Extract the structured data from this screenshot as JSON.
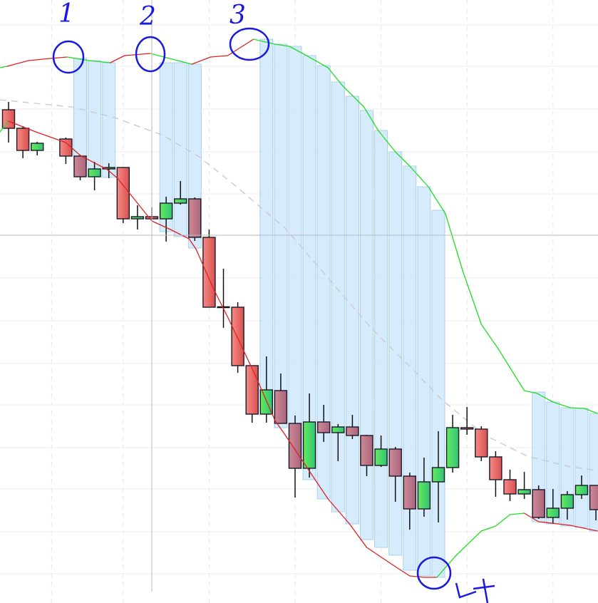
{
  "chart_data": {
    "type": "candlestick",
    "title": "",
    "xlabel": "",
    "ylabel": "",
    "ylim": [
      0,
      846
    ],
    "xlim": [
      -0.6,
      41.1
    ],
    "grid": {
      "horizontal": true,
      "vertical_dashed": true
    },
    "grid_h_levels": [
      811,
      753,
      693,
      633,
      574,
      456,
      396,
      336,
      278,
      218,
      160,
      100,
      41
    ],
    "grid_v_slots": [
      3,
      8,
      14,
      20,
      26,
      32,
      38
    ],
    "crosshair": {
      "slot": 10,
      "price": 516
    },
    "colors": {
      "red": "#e8605f",
      "mauve": "#b97384",
      "green": "#3ecf6a",
      "doji": "#111111",
      "highlight": "#cfe7fb",
      "band_up": "#22dd22",
      "band_down": "#dd2222",
      "dashed": "#c8c8c8",
      "annotation": "#1a1adf"
    },
    "candles": [
      {
        "t": 0,
        "o": 692,
        "h": 703,
        "l": 646,
        "c": 666,
        "color": "red"
      },
      {
        "t": 1,
        "o": 666,
        "h": 669,
        "l": 624,
        "c": 635,
        "color": "red"
      },
      {
        "t": 2,
        "o": 635,
        "h": 647,
        "l": 628,
        "c": 645,
        "color": "green"
      },
      {
        "t": 4,
        "o": 651,
        "h": 653,
        "l": 616,
        "c": 627,
        "color": "red"
      },
      {
        "t": 5,
        "o": 627,
        "h": 629,
        "l": 593,
        "c": 598,
        "color": "mauve"
      },
      {
        "t": 6,
        "o": 598,
        "h": 619,
        "l": 579,
        "c": 609,
        "color": "green"
      },
      {
        "t": 7,
        "o": 609,
        "h": 617,
        "l": 596,
        "c": 611,
        "color": "green"
      },
      {
        "t": 8,
        "o": 611,
        "h": 611,
        "l": 533,
        "c": 539,
        "color": "red"
      },
      {
        "t": 9,
        "o": 539,
        "h": 558,
        "l": 524,
        "c": 542,
        "color": "green"
      },
      {
        "t": 10,
        "o": 542,
        "h": 555,
        "l": 539,
        "c": 539,
        "color": "red"
      },
      {
        "t": 11,
        "o": 539,
        "h": 570,
        "l": 507,
        "c": 561,
        "color": "green"
      },
      {
        "t": 12,
        "o": 561,
        "h": 592,
        "l": 559,
        "c": 567,
        "color": "green"
      },
      {
        "t": 13,
        "o": 567,
        "h": 569,
        "l": 508,
        "c": 513,
        "color": "mauve"
      },
      {
        "t": 14,
        "o": 513,
        "h": 524,
        "l": 415,
        "c": 415,
        "color": "red"
      },
      {
        "t": 15,
        "o": 415,
        "h": 469,
        "l": 386,
        "c": 415,
        "color": "doji"
      },
      {
        "t": 16,
        "o": 415,
        "h": 422,
        "l": 323,
        "c": 333,
        "color": "red"
      },
      {
        "t": 17,
        "o": 333,
        "h": 333,
        "l": 253,
        "c": 265,
        "color": "red"
      },
      {
        "t": 18,
        "o": 265,
        "h": 346,
        "l": 253,
        "c": 299,
        "color": "green"
      },
      {
        "t": 19,
        "o": 298,
        "h": 322,
        "l": 252,
        "c": 252,
        "color": "mauve"
      },
      {
        "t": 20,
        "o": 252,
        "h": 263,
        "l": 148,
        "c": 189,
        "color": "mauve"
      },
      {
        "t": 21,
        "o": 189,
        "h": 294,
        "l": 176,
        "c": 254,
        "color": "green"
      },
      {
        "t": 22,
        "o": 254,
        "h": 278,
        "l": 226,
        "c": 239,
        "color": "mauve"
      },
      {
        "t": 23,
        "o": 239,
        "h": 251,
        "l": 199,
        "c": 247,
        "color": "green"
      },
      {
        "t": 24,
        "o": 247,
        "h": 264,
        "l": 230,
        "c": 235,
        "color": "mauve"
      },
      {
        "t": 25,
        "o": 235,
        "h": 236,
        "l": 178,
        "c": 193,
        "color": "mauve"
      },
      {
        "t": 26,
        "o": 193,
        "h": 235,
        "l": 191,
        "c": 216,
        "color": "green"
      },
      {
        "t": 27,
        "o": 216,
        "h": 219,
        "l": 142,
        "c": 178,
        "color": "mauve"
      },
      {
        "t": 28,
        "o": 178,
        "h": 183,
        "l": 103,
        "c": 132,
        "color": "mauve"
      },
      {
        "t": 29,
        "o": 132,
        "h": 204,
        "l": 121,
        "c": 170,
        "color": "green"
      },
      {
        "t": 30,
        "o": 170,
        "h": 241,
        "l": 113,
        "c": 190,
        "color": "green"
      },
      {
        "t": 31,
        "o": 190,
        "h": 264,
        "l": 183,
        "c": 246,
        "color": "green"
      },
      {
        "t": 32,
        "o": 246,
        "h": 275,
        "l": 236,
        "c": 244,
        "color": "red"
      },
      {
        "t": 33,
        "o": 244,
        "h": 248,
        "l": 199,
        "c": 205,
        "color": "red"
      },
      {
        "t": 34,
        "o": 205,
        "h": 213,
        "l": 149,
        "c": 173,
        "color": "red"
      },
      {
        "t": 35,
        "o": 173,
        "h": 187,
        "l": 143,
        "c": 153,
        "color": "red"
      },
      {
        "t": 36,
        "o": 153,
        "h": 184,
        "l": 146,
        "c": 159,
        "color": "green"
      },
      {
        "t": 37,
        "o": 159,
        "h": 165,
        "l": 118,
        "c": 120,
        "color": "mauve"
      },
      {
        "t": 38,
        "o": 120,
        "h": 160,
        "l": 111,
        "c": 133,
        "color": "green"
      },
      {
        "t": 39,
        "o": 133,
        "h": 157,
        "l": 117,
        "c": 152,
        "color": "green"
      },
      {
        "t": 40,
        "o": 152,
        "h": 179,
        "l": 146,
        "c": 165,
        "color": "green"
      },
      {
        "t": 41,
        "o": 165,
        "h": 165,
        "l": 116,
        "c": 131,
        "color": "mauve"
      }
    ],
    "highlights": [
      [
        5,
        764,
        616
      ],
      [
        6,
        761,
        598
      ],
      [
        7,
        758,
        597
      ],
      [
        11,
        758,
        521
      ],
      [
        12,
        758,
        514
      ],
      [
        13,
        756,
        498
      ],
      [
        18,
        791,
        288
      ],
      [
        19,
        784,
        246
      ],
      [
        20,
        781,
        189
      ],
      [
        21,
        768,
        173
      ],
      [
        22,
        754,
        146
      ],
      [
        23,
        731,
        128
      ],
      [
        24,
        711,
        111
      ],
      [
        25,
        691,
        89
      ],
      [
        26,
        663,
        78
      ],
      [
        27,
        633,
        67
      ],
      [
        28,
        613,
        46
      ],
      [
        29,
        584,
        38
      ],
      [
        30,
        551,
        36
      ],
      [
        37,
        296,
        114
      ],
      [
        38,
        282,
        111
      ],
      [
        39,
        274,
        108
      ],
      [
        40,
        273,
        106
      ],
      [
        41,
        266,
        101
      ]
    ],
    "upper_band": [
      [
        -0.6,
        751,
        "up"
      ],
      [
        -0.1,
        753,
        "down"
      ],
      [
        1.4,
        761,
        "down"
      ],
      [
        2.9,
        764,
        "down"
      ],
      [
        4.1,
        766,
        "up"
      ],
      [
        5.6,
        761,
        "up"
      ],
      [
        7.1,
        758,
        "down"
      ],
      [
        8.1,
        768,
        "down"
      ],
      [
        9.9,
        771,
        "up"
      ],
      [
        11.8,
        761,
        "up"
      ],
      [
        12.8,
        756,
        "down"
      ],
      [
        14.1,
        766,
        "down"
      ],
      [
        15.3,
        768,
        "down"
      ],
      [
        17.1,
        791,
        "up"
      ],
      [
        18.6,
        784,
        "up"
      ],
      [
        19.6,
        781,
        "up"
      ],
      [
        20.8,
        768,
        "up"
      ],
      [
        22.3,
        751,
        "up"
      ],
      [
        23.3,
        726,
        "up"
      ],
      [
        24.8,
        696,
        "up"
      ],
      [
        25.8,
        663,
        "up"
      ],
      [
        27,
        633,
        "up"
      ],
      [
        28,
        613,
        "up"
      ],
      [
        29.3,
        584,
        "up"
      ],
      [
        30.5,
        546,
        "up"
      ],
      [
        31.7,
        466,
        "up"
      ],
      [
        33,
        391,
        "up"
      ],
      [
        34.2,
        356,
        "up"
      ],
      [
        36,
        298,
        "up"
      ],
      [
        36.9,
        294,
        "up"
      ],
      [
        38,
        282,
        "up"
      ],
      [
        39.2,
        274,
        "up"
      ],
      [
        40.2,
        273,
        "up"
      ],
      [
        41.1,
        266,
        "up"
      ]
    ],
    "lower_band": [
      [
        -0.6,
        661,
        "up"
      ],
      [
        0,
        676,
        "down"
      ],
      [
        1.9,
        661,
        "down"
      ],
      [
        4,
        646,
        "down"
      ],
      [
        5,
        628,
        "down"
      ],
      [
        6.9,
        608,
        "down"
      ],
      [
        7.6,
        596,
        "down"
      ],
      [
        8.4,
        576,
        "down"
      ],
      [
        10,
        536,
        "down"
      ],
      [
        11.3,
        524,
        "down"
      ],
      [
        12.6,
        511,
        "down"
      ],
      [
        13.1,
        496,
        "down"
      ],
      [
        14.3,
        441,
        "down"
      ],
      [
        15.3,
        401,
        "down"
      ],
      [
        16.6,
        346,
        "down"
      ],
      [
        17.3,
        316,
        "down"
      ],
      [
        18.6,
        256,
        "down"
      ],
      [
        19.3,
        236,
        "down"
      ],
      [
        20.3,
        206,
        "down"
      ],
      [
        22.3,
        146,
        "down"
      ],
      [
        23.8,
        111,
        "down"
      ],
      [
        25,
        78,
        "down"
      ],
      [
        27,
        51,
        "down"
      ],
      [
        28,
        38,
        "down"
      ],
      [
        29,
        36,
        "down"
      ],
      [
        29.9,
        36,
        "up"
      ],
      [
        31.2,
        66,
        "up"
      ],
      [
        33,
        101,
        "up"
      ],
      [
        34,
        108,
        "up"
      ],
      [
        35,
        124,
        "up"
      ],
      [
        36,
        126,
        "down"
      ],
      [
        37,
        114,
        "down"
      ],
      [
        39.2,
        109,
        "down"
      ],
      [
        41.1,
        101,
        "down"
      ]
    ],
    "dashed_average": [
      [
        -0.6,
        706
      ],
      [
        4.4,
        696
      ],
      [
        7.4,
        681
      ],
      [
        10.8,
        656
      ],
      [
        13.3,
        626
      ],
      [
        15.8,
        586
      ],
      [
        19.3,
        526
      ],
      [
        22.3,
        456
      ],
      [
        25.3,
        386
      ],
      [
        28.3,
        326
      ],
      [
        30.2,
        286
      ],
      [
        33.2,
        236
      ],
      [
        36.2,
        206
      ],
      [
        39.2,
        191
      ],
      [
        41.1,
        186
      ]
    ],
    "annotations": [
      "1",
      "2",
      "3",
      "4"
    ]
  }
}
